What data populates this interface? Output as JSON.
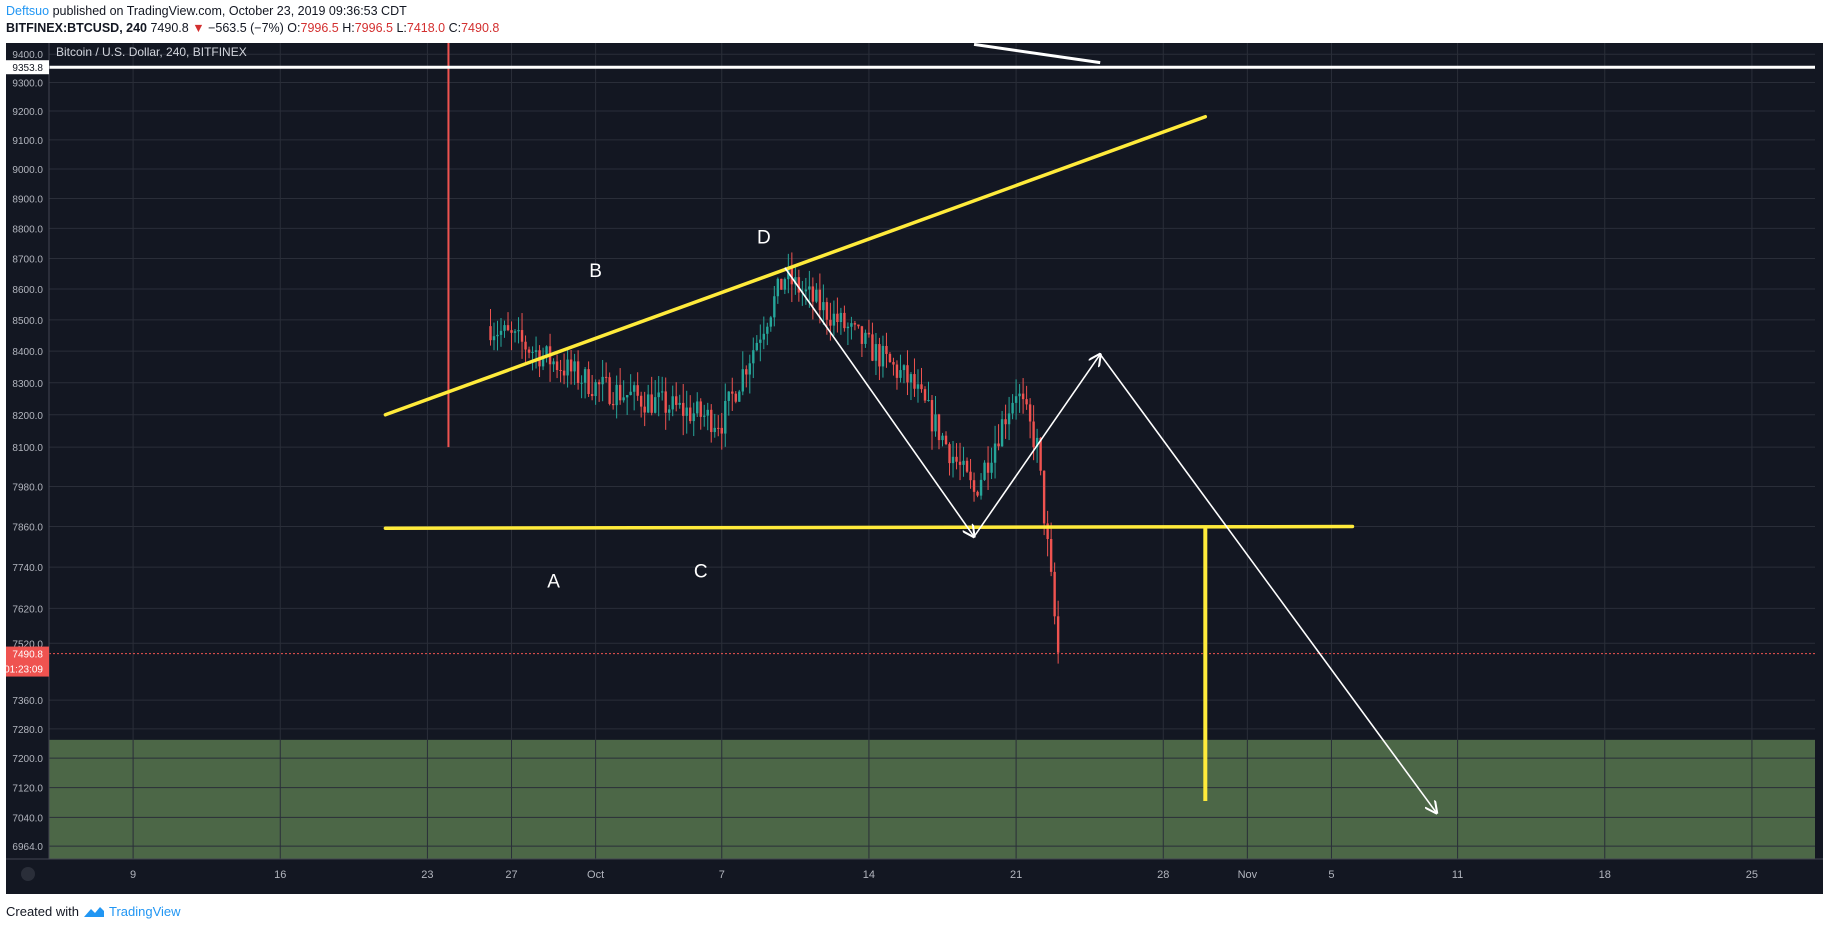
{
  "header": {
    "author": "Deftsuo",
    "published_text": "published on TradingView.com, October 23, 2019 09:36:53 CDT",
    "symbol_line": "BITFINEX:BTCUSD, 240",
    "last": "7490.8",
    "change_arrow": "▼",
    "change": "−563.5 (−7%)",
    "o_label": "O:",
    "o_value": "7996.5",
    "h_label": "H:",
    "h_value": "7996.5",
    "l_label": "L:",
    "l_value": "7418.0",
    "c_label": "C:",
    "c_value": "7490.8"
  },
  "footer": {
    "created_with": "Created with",
    "brand": "TradingView"
  },
  "colors": {
    "background": "#131722",
    "grid": "#2a2e39",
    "up": "#26a69a",
    "down": "#ef5350",
    "pattern": "#ffeb3b",
    "arrow": "#ffffff",
    "zone": "#4f6b4a",
    "price_tag": "#ef5350"
  },
  "chart_data": {
    "type": "candlestick",
    "title": "Bitcoin / U.S. Dollar, 240, BITFINEX",
    "symbol": "BITFINEX:BTCUSD",
    "interval": "240",
    "y_axis": {
      "scale": "log",
      "ylim": [
        6930,
        9440
      ],
      "ticks": [
        9400.0,
        9300.0,
        9200.0,
        9100.0,
        9000.0,
        8900.0,
        8800.0,
        8700.0,
        8600.0,
        8500.0,
        8400.0,
        8300.0,
        8200.0,
        8100.0,
        7980.0,
        7860.0,
        7740.0,
        7620.0,
        7520.0,
        7360.0,
        7280.0,
        7200.0,
        7120.0,
        7040.0,
        6964.0
      ]
    },
    "x_axis": {
      "unit": "date",
      "range": [
        "2019-09-05",
        "2019-10-28 (Nov 28)"
      ],
      "ticks": [
        {
          "label": "9",
          "date": "2019-09-09"
        },
        {
          "label": "16",
          "date": "2019-09-16"
        },
        {
          "label": "23",
          "date": "2019-09-23"
        },
        {
          "label": "27",
          "date": "2019-09-27"
        },
        {
          "label": "Oct",
          "date": "2019-10-01"
        },
        {
          "label": "7",
          "date": "2019-10-07"
        },
        {
          "label": "14",
          "date": "2019-10-14"
        },
        {
          "label": "21",
          "date": "2019-10-21"
        },
        {
          "label": "28",
          "date": "2019-10-28"
        },
        {
          "label": "Nov",
          "date": "2019-11-01"
        },
        {
          "label": "5",
          "date": "2019-11-05"
        },
        {
          "label": "11",
          "date": "2019-11-11"
        },
        {
          "label": "18",
          "date": "2019-11-18"
        },
        {
          "label": "25",
          "date": "2019-11-25"
        }
      ]
    },
    "price_lines": [
      {
        "label": "9353.8",
        "price": 9353.8,
        "color": "#ffffff"
      },
      {
        "label": "7490.8",
        "price": 7490.8,
        "color": "#ef5350"
      }
    ],
    "countdown": "01:23:09",
    "anchors": [
      {
        "date": "2019-09-26",
        "price": 8480
      },
      {
        "date": "2019-10-01",
        "price": 8290
      },
      {
        "date": "2019-10-07",
        "price": 8180
      },
      {
        "date": "2019-10-10",
        "price": 8640
      },
      {
        "date": "2019-10-16",
        "price": 8300
      },
      {
        "date": "2019-10-19",
        "price": 7960
      },
      {
        "date": "2019-10-21",
        "price": 8280
      },
      {
        "date": "2019-10-22",
        "price": 8100
      },
      {
        "date": "2019-10-23",
        "price": 7490
      }
    ],
    "spike": {
      "date": "2019-09-24",
      "high": 9500,
      "low": 8100
    },
    "candle_seed": 7,
    "annotations": {
      "points": [
        {
          "label": "A",
          "date": "2019-09-29",
          "price": 7680
        },
        {
          "label": "B",
          "date": "2019-10-01",
          "price": 8640
        },
        {
          "label": "C",
          "date": "2019-10-06",
          "price": 7710
        },
        {
          "label": "D",
          "date": "2019-10-09",
          "price": 8750
        }
      ],
      "trendlines": [
        {
          "name": "upper",
          "from": {
            "date": "2019-09-21",
            "price": 8200
          },
          "to": {
            "date": "2019-10-30",
            "price": 9180
          }
        },
        {
          "name": "support",
          "from": {
            "date": "2019-09-21",
            "price": 7855
          },
          "to": {
            "date": "2019-11-06",
            "price": 7860
          }
        }
      ],
      "target": {
        "date": "2019-10-30",
        "from": 7862,
        "to": 7084
      },
      "zone": {
        "from": 6930,
        "to": 7250
      },
      "path": [
        {
          "date": "2019-10-10",
          "price": 8670
        },
        {
          "date": "2019-10-19",
          "price": 7830
        },
        {
          "date": "2019-10-25",
          "price": 8390
        },
        {
          "date": "2019-11-10",
          "price": 7052
        }
      ],
      "offscreen_line": {
        "from": {
          "date": "2019-10-19",
          "price": 9435
        },
        "to": {
          "date": "2019-10-25",
          "price": 9370
        }
      }
    }
  }
}
